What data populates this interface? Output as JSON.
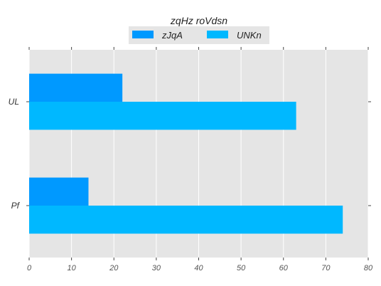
{
  "chart_data": {
    "type": "bar",
    "orientation": "horizontal",
    "title": "",
    "xlabel": "",
    "ylabel": "",
    "categories": [
      "UL",
      "Pf"
    ],
    "series": [
      {
        "name": "zJqA",
        "values": [
          22,
          14
        ],
        "color": "#0099ff"
      },
      {
        "name": "UNKn",
        "values": [
          63,
          74
        ],
        "color": "#00b8ff"
      }
    ],
    "xlim": [
      0,
      80
    ],
    "xticks": [
      0,
      10,
      20,
      30,
      40,
      50,
      60,
      70,
      80
    ],
    "grid": true,
    "legend": {
      "title": "zqHz  roVdsn",
      "placement": "top-center"
    },
    "style": {
      "plot_background": "#e5e5e5",
      "grid_color": "#ffffff"
    }
  }
}
